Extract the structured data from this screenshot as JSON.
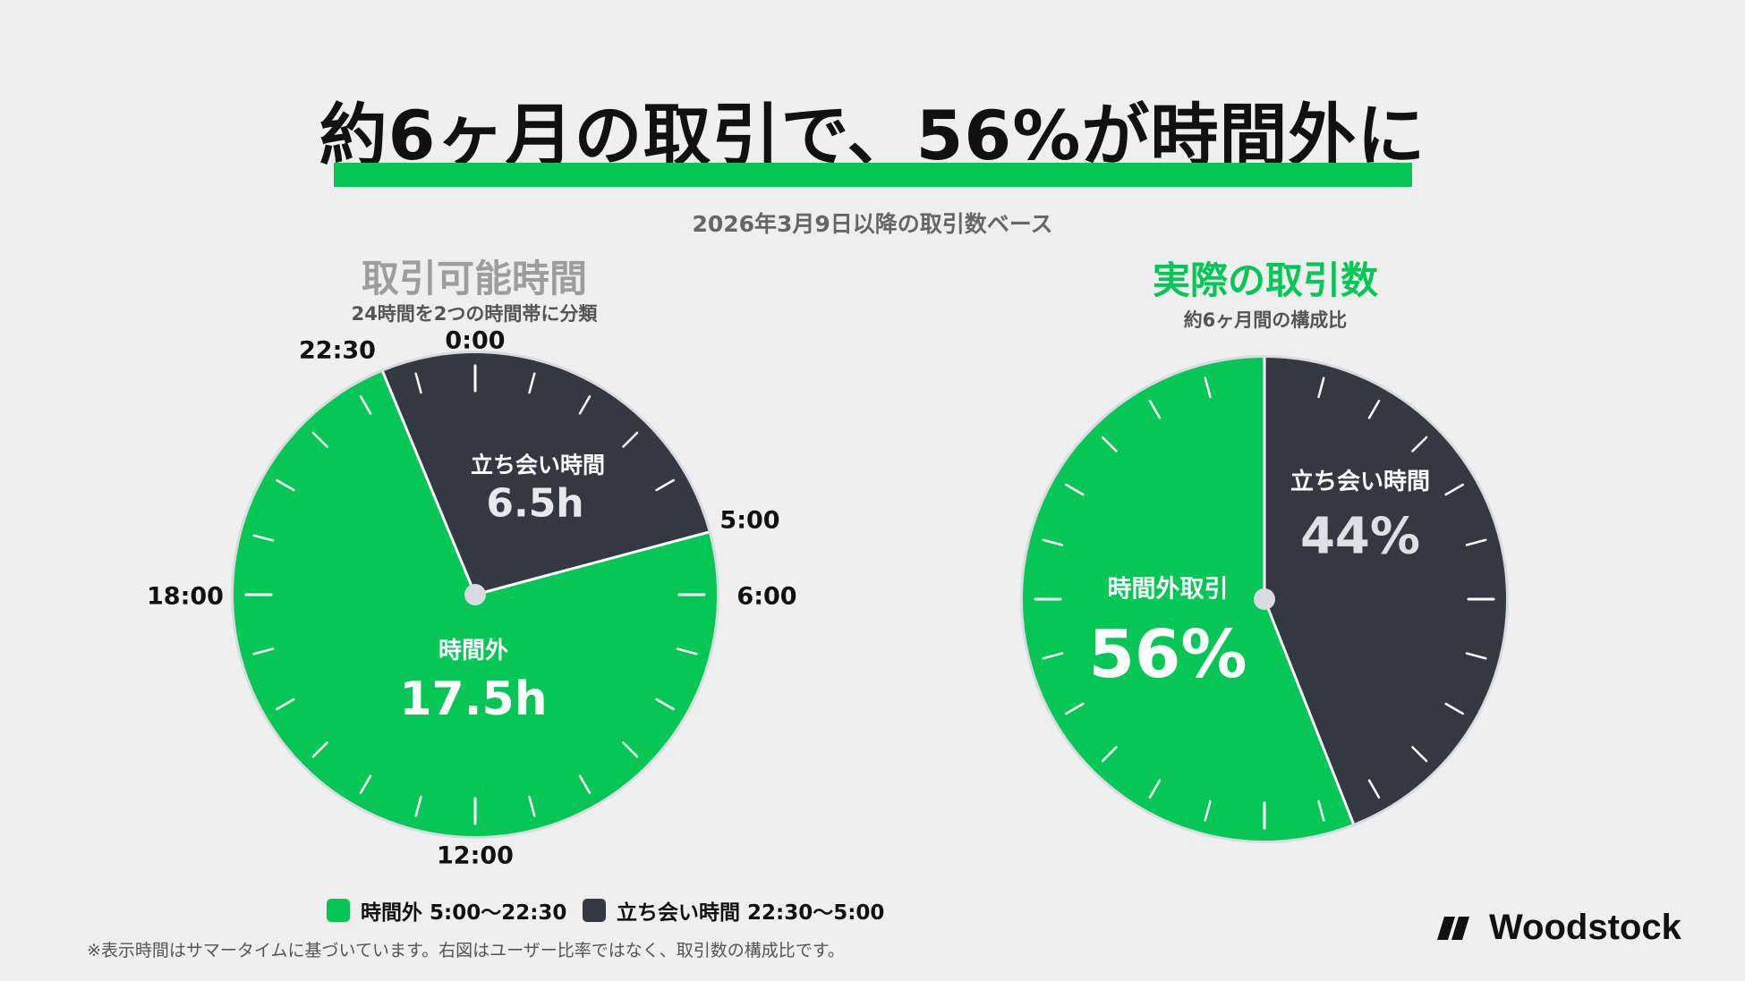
{
  "title": "約6ヶ月の取引で、56%が時間外に",
  "subtitle": "2026年3月9日以降の取引数ベース",
  "colors": {
    "green": "#06c755",
    "dark": "#343843",
    "background": "#efefef"
  },
  "chart_data": [
    {
      "type": "pie",
      "title": "取引可能時間",
      "subtitle": "24時間を2つの時間帯に分類",
      "unit": "h",
      "clock_labels": [
        "0:00",
        "5:00",
        "6:00",
        "12:00",
        "18:00",
        "22:30"
      ],
      "slices": [
        {
          "label": "立ち会い時間",
          "value": 6.5,
          "display": "6.5h",
          "color": "#343843",
          "range": [
            "22:30",
            "5:00"
          ]
        },
        {
          "label": "時間外",
          "value": 17.5,
          "display": "17.5h",
          "color": "#06c755",
          "range": [
            "5:00",
            "22:30"
          ]
        }
      ]
    },
    {
      "type": "pie",
      "title": "実際の取引数",
      "subtitle": "約6ヶ月間の構成比",
      "unit": "%",
      "slices": [
        {
          "label": "立ち会い時間",
          "value": 44,
          "display": "44%",
          "color": "#343843"
        },
        {
          "label": "時間外取引",
          "value": 56,
          "display": "56%",
          "color": "#06c755"
        }
      ]
    }
  ],
  "legend": [
    {
      "label": "時間外 5:00〜22:30",
      "color": "#06c755"
    },
    {
      "label": "立ち会い時間 22:30〜5:00",
      "color": "#343843"
    }
  ],
  "footnote": "※表示時間はサマータイムに基づいています。右図はユーザー比率ではなく、取引数の構成比です。",
  "logo": {
    "text": "Woodstock",
    "icon": "woodstock-logo-icon"
  }
}
